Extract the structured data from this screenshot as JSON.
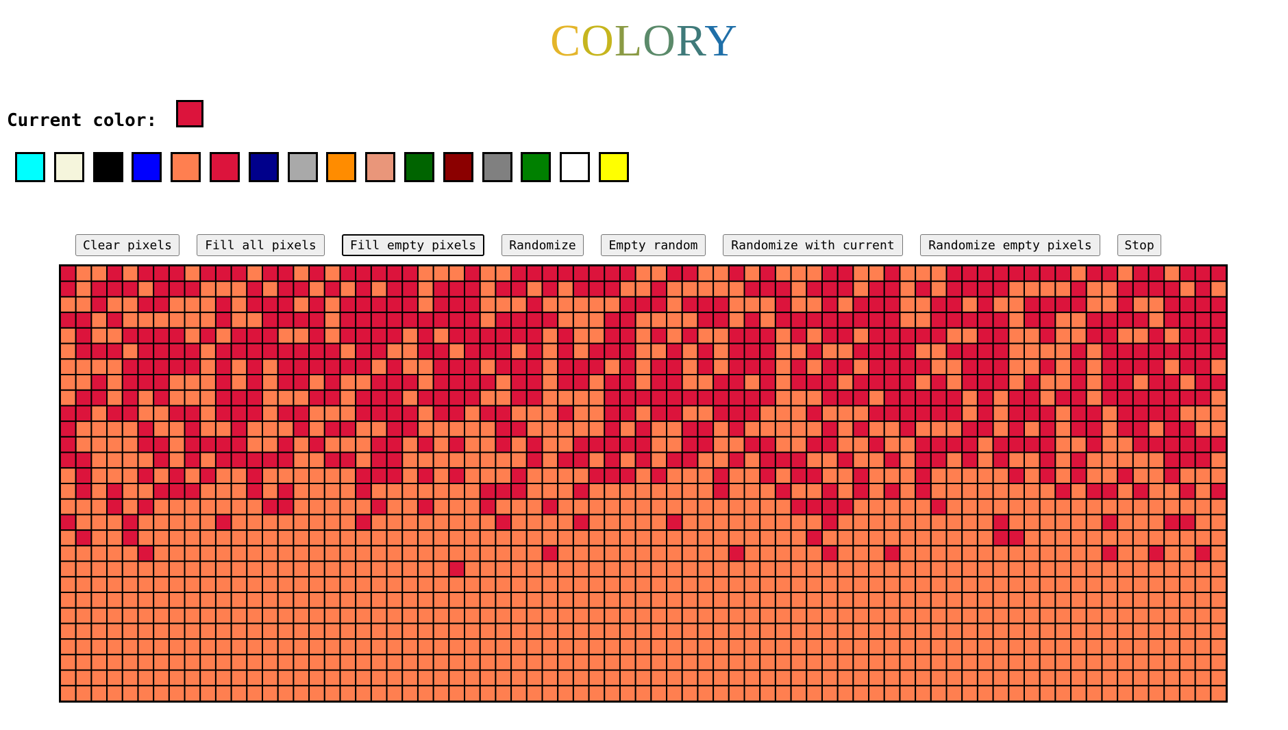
{
  "app": {
    "title_letters": [
      {
        "char": "C",
        "color": "#e4b52a"
      },
      {
        "char": "O",
        "color": "#c6b51e"
      },
      {
        "char": "L",
        "color": "#8a9a44"
      },
      {
        "char": "O",
        "color": "#5b8a6a"
      },
      {
        "char": "R",
        "color": "#3f7a7a"
      },
      {
        "char": "Y",
        "color": "#1f6fa8"
      }
    ]
  },
  "current_color": {
    "label": "Current color:",
    "value": "#dc143c"
  },
  "palette": [
    {
      "name": "cyan",
      "color": "#00ffff"
    },
    {
      "name": "beige",
      "color": "#f5f5dc"
    },
    {
      "name": "black",
      "color": "#000000"
    },
    {
      "name": "blue",
      "color": "#0000ff"
    },
    {
      "name": "coral",
      "color": "#ff7f50"
    },
    {
      "name": "crimson",
      "color": "#dc143c"
    },
    {
      "name": "darkblue",
      "color": "#00008b"
    },
    {
      "name": "darkgray",
      "color": "#a9a9a9"
    },
    {
      "name": "darkorange",
      "color": "#ff8c00"
    },
    {
      "name": "darksalmon",
      "color": "#e9967a"
    },
    {
      "name": "darkgreen",
      "color": "#006400"
    },
    {
      "name": "darkred",
      "color": "#8b0000"
    },
    {
      "name": "gray",
      "color": "#808080"
    },
    {
      "name": "green",
      "color": "#008000"
    },
    {
      "name": "white",
      "color": "#ffffff"
    },
    {
      "name": "yellow",
      "color": "#ffff00"
    }
  ],
  "toolbar": {
    "clear_label": "Clear pixels",
    "fill_all_label": "Fill all pixels",
    "fill_empty_label": "Fill empty pixels",
    "randomize_label": "Randomize",
    "empty_random_label": "Empty random",
    "randomize_current_label": "Randomize with current",
    "randomize_empty_label": "Randomize empty pixels",
    "stop_label": "Stop"
  },
  "grid": {
    "columns": 75,
    "rows": 28,
    "fill_color": "#ff7f50",
    "accent_color": "#dc143c",
    "border_color": "#000000"
  }
}
